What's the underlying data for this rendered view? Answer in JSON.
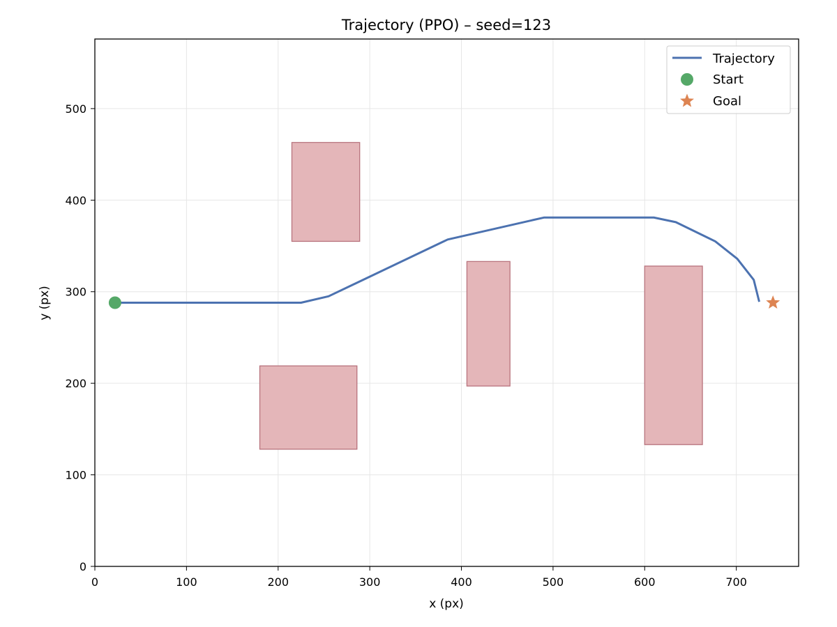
{
  "chart_data": {
    "type": "line",
    "title": "Trajectory (PPO) – seed=123",
    "xlabel": "x (px)",
    "ylabel": "y (px)",
    "xlim": [
      0,
      768
    ],
    "ylim": [
      0,
      576
    ],
    "xticks": [
      0,
      100,
      200,
      300,
      400,
      500,
      600,
      700
    ],
    "yticks": [
      0,
      100,
      200,
      300,
      400,
      500
    ],
    "grid": true,
    "legend_position": "top-right",
    "legend": [
      "Trajectory",
      "Start",
      "Goal"
    ],
    "series": [
      {
        "name": "Trajectory",
        "color": "#4c72b0",
        "x": [
          22,
          225,
          255,
          385,
          490,
          610,
          634,
          677,
          701,
          719,
          725
        ],
        "y": [
          288,
          288,
          295,
          357,
          381,
          381,
          376,
          355,
          336,
          313,
          289
        ]
      }
    ],
    "markers": [
      {
        "name": "Start",
        "shape": "circle",
        "color": "#55a868",
        "x": 22,
        "y": 288
      },
      {
        "name": "Goal",
        "shape": "star",
        "color": "#dd8452",
        "x": 740,
        "y": 288
      }
    ],
    "obstacles": {
      "fill": "#e4b6b9",
      "edge": "#b8737d",
      "rects": [
        {
          "x0": 215,
          "x1": 289,
          "y0": 355,
          "y1": 463
        },
        {
          "x0": 180,
          "x1": 286,
          "y0": 128,
          "y1": 219
        },
        {
          "x0": 406,
          "x1": 453,
          "y0": 197,
          "y1": 333
        },
        {
          "x0": 600,
          "x1": 663,
          "y0": 133,
          "y1": 328
        }
      ]
    }
  }
}
